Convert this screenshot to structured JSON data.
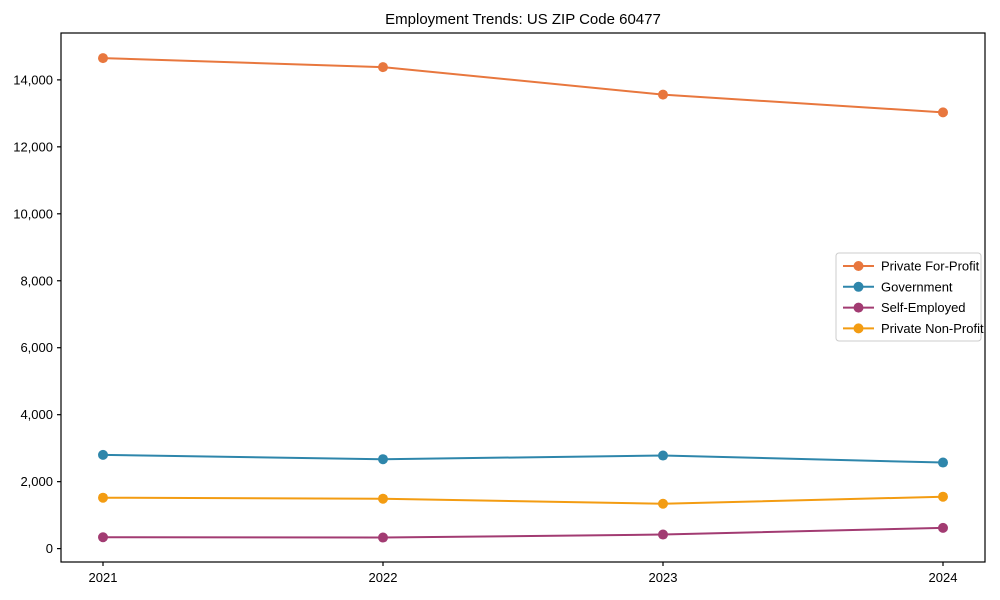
{
  "title": "Employment Trends: US ZIP Code 60477",
  "chart_data": {
    "type": "line",
    "title": "Employment Trends: US ZIP Code 60477",
    "xlabel": "",
    "ylabel": "",
    "x": [
      2021,
      2022,
      2023,
      2024
    ],
    "xtick_labels": [
      "2021",
      "2022",
      "2023",
      "2024"
    ],
    "yticks": [
      0,
      2000,
      4000,
      6000,
      8000,
      10000,
      12000,
      14000
    ],
    "ytick_labels": [
      "0",
      "2,000",
      "4,000",
      "6,000",
      "8,000",
      "10,000",
      "12,000",
      "14,000"
    ],
    "ylim": [
      -400,
      15400
    ],
    "grid": false,
    "marker": "o",
    "legend_position": "center right",
    "axis_color": "#000000",
    "legend_border_color": "#cccccc",
    "series": [
      {
        "name": "Private For-Profit",
        "color": "#E8773E",
        "values": [
          14650,
          14380,
          13560,
          13030
        ]
      },
      {
        "name": "Government",
        "color": "#2E86AB",
        "values": [
          2800,
          2670,
          2780,
          2570
        ]
      },
      {
        "name": "Self-Employed",
        "color": "#A23B72",
        "values": [
          340,
          330,
          420,
          620
        ]
      },
      {
        "name": "Private Non-Profit",
        "color": "#F39C12",
        "values": [
          1520,
          1490,
          1340,
          1550
        ]
      }
    ]
  }
}
